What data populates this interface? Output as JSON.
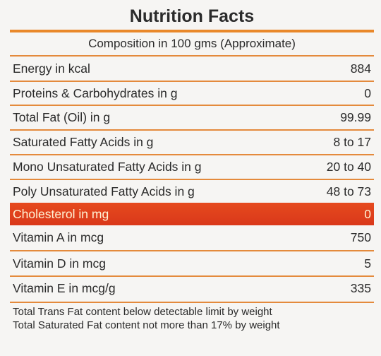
{
  "title": "Nutrition Facts",
  "subheading": "Composition in 100 gms (Approximate)",
  "rows": [
    {
      "label": "Energy in kcal",
      "value": "884"
    },
    {
      "label": "Proteins & Carbohydrates in g",
      "value": "0"
    },
    {
      "label": "Total Fat (Oil) in g",
      "value": "99.99"
    },
    {
      "label": "Saturated Fatty Acids in g",
      "value": "8 to 17"
    },
    {
      "label": "Mono Unsaturated Fatty Acids in g",
      "value": "20 to 40"
    },
    {
      "label": "Poly Unsaturated Fatty Acids in g",
      "value": "48 to 73"
    },
    {
      "label": "Cholesterol in mg",
      "value": "0"
    },
    {
      "label": "Vitamin A in mcg",
      "value": "750"
    },
    {
      "label": "Vitamin D in mcg",
      "value": "5"
    },
    {
      "label": "Vitamin E in mcg/g",
      "value": "335"
    }
  ],
  "notes": [
    "Total Trans Fat content below detectable limit by weight",
    "Total Saturated Fat content not more than 17% by weight"
  ],
  "colors": {
    "rule": "#e9882a",
    "highlight": "#e0421c",
    "highlight_text": "#fff3d6"
  }
}
